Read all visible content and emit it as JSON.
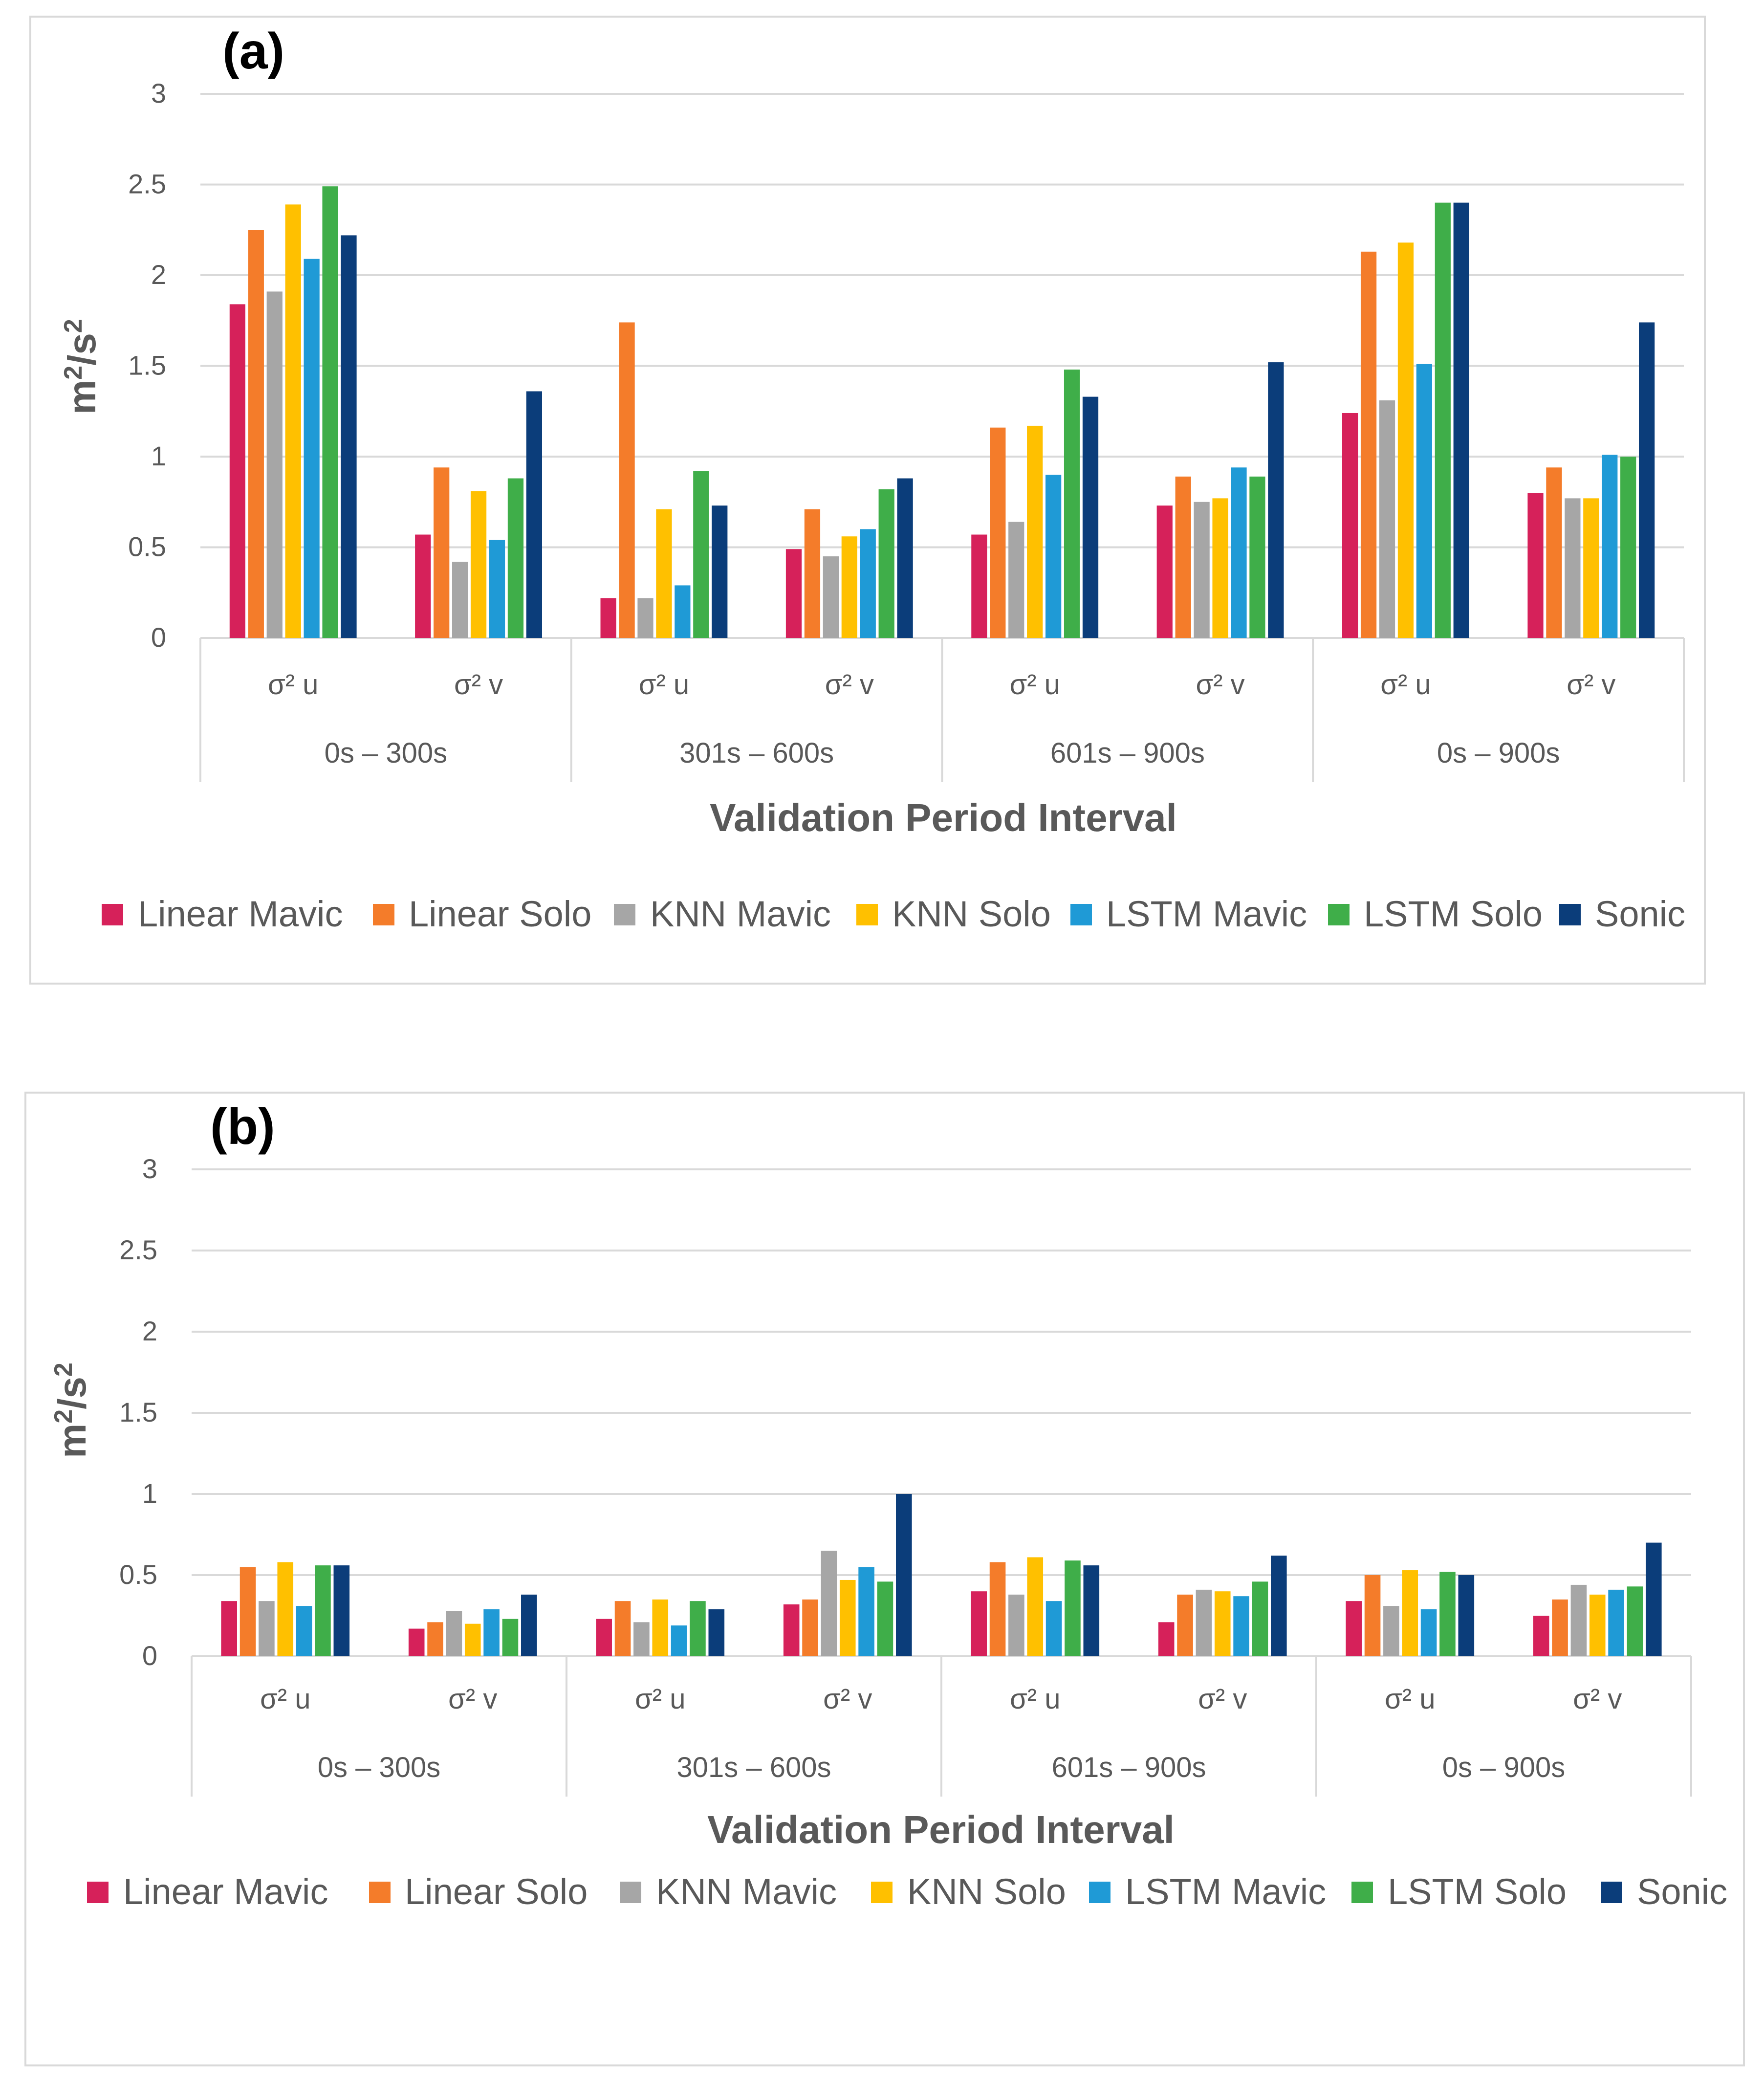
{
  "chart_data": [
    {
      "type": "bar",
      "panel_label": "(a)",
      "ylabel_base": "m",
      "ylabel_sup": "2",
      "ylabel_mid": "/s",
      "ylabel_sup2": "2",
      "xlabel": "Validation Period Interval",
      "ylim": [
        0,
        3
      ],
      "y_ticks": [
        "0",
        "0.5",
        "1",
        "1.5",
        "2",
        "2.5",
        "3"
      ],
      "grid": true,
      "legend_position": "bottom",
      "intervals": [
        "0s – 300s",
        "301s – 600s",
        "601s – 900s",
        "0s – 900s"
      ],
      "categories": [
        "σ² u",
        "σ² v",
        "σ² u",
        "σ² v",
        "σ² u",
        "σ² v",
        "σ² u",
        "σ² v"
      ],
      "series": [
        {
          "name": "Linear Mavic",
          "color": "#d6215a",
          "values": [
            1.84,
            0.57,
            0.22,
            0.49,
            0.57,
            0.73,
            1.24,
            0.8
          ]
        },
        {
          "name": "Linear Solo",
          "color": "#f47c2a",
          "values": [
            2.25,
            0.94,
            1.74,
            0.71,
            1.16,
            0.89,
            2.13,
            0.94
          ]
        },
        {
          "name": "KNN Mavic",
          "color": "#a6a6a6",
          "values": [
            1.91,
            0.42,
            0.22,
            0.45,
            0.64,
            0.75,
            1.31,
            0.77
          ]
        },
        {
          "name": "KNN Solo",
          "color": "#ffc000",
          "values": [
            2.39,
            0.81,
            0.71,
            0.56,
            1.17,
            0.77,
            2.18,
            0.77
          ]
        },
        {
          "name": "LSTM Mavic",
          "color": "#1f9ad6",
          "values": [
            2.09,
            0.54,
            0.29,
            0.6,
            0.9,
            0.94,
            1.51,
            1.01
          ]
        },
        {
          "name": "LSTM Solo",
          "color": "#3fae49",
          "values": [
            2.49,
            0.88,
            0.92,
            0.82,
            1.48,
            0.89,
            2.4,
            1.0
          ]
        },
        {
          "name": "Sonic",
          "color": "#0b3d7a",
          "values": [
            2.22,
            1.36,
            0.73,
            0.88,
            1.33,
            1.52,
            2.4,
            1.74
          ]
        }
      ]
    },
    {
      "type": "bar",
      "panel_label": "(b)",
      "ylabel_base": "m",
      "ylabel_sup": "2",
      "ylabel_mid": "/s",
      "ylabel_sup2": "2",
      "xlabel": "Validation Period Interval",
      "ylim": [
        0,
        3
      ],
      "y_ticks": [
        "0",
        "0.5",
        "1",
        "1.5",
        "2",
        "2.5",
        "3"
      ],
      "grid": true,
      "legend_position": "bottom",
      "intervals": [
        "0s – 300s",
        "301s – 600s",
        "601s – 900s",
        "0s – 900s"
      ],
      "categories": [
        "σ² u",
        "σ² v",
        "σ² u",
        "σ² v",
        "σ² u",
        "σ² v",
        "σ² u",
        "σ² v"
      ],
      "series": [
        {
          "name": "Linear Mavic",
          "color": "#d6215a",
          "values": [
            0.34,
            0.17,
            0.23,
            0.32,
            0.4,
            0.21,
            0.34,
            0.25
          ]
        },
        {
          "name": "Linear Solo",
          "color": "#f47c2a",
          "values": [
            0.55,
            0.21,
            0.34,
            0.35,
            0.58,
            0.38,
            0.5,
            0.35
          ]
        },
        {
          "name": "KNN Mavic",
          "color": "#a6a6a6",
          "values": [
            0.34,
            0.28,
            0.21,
            0.65,
            0.38,
            0.41,
            0.31,
            0.44
          ]
        },
        {
          "name": "KNN Solo",
          "color": "#ffc000",
          "values": [
            0.58,
            0.2,
            0.35,
            0.47,
            0.61,
            0.4,
            0.53,
            0.38
          ]
        },
        {
          "name": "LSTM Mavic",
          "color": "#1f9ad6",
          "values": [
            0.31,
            0.29,
            0.19,
            0.55,
            0.34,
            0.37,
            0.29,
            0.41
          ]
        },
        {
          "name": "LSTM Solo",
          "color": "#3fae49",
          "values": [
            0.56,
            0.23,
            0.34,
            0.46,
            0.59,
            0.46,
            0.52,
            0.43
          ]
        },
        {
          "name": "Sonic",
          "color": "#0b3d7a",
          "values": [
            0.56,
            0.38,
            0.29,
            1.0,
            0.56,
            0.62,
            0.5,
            0.7
          ]
        }
      ]
    }
  ]
}
